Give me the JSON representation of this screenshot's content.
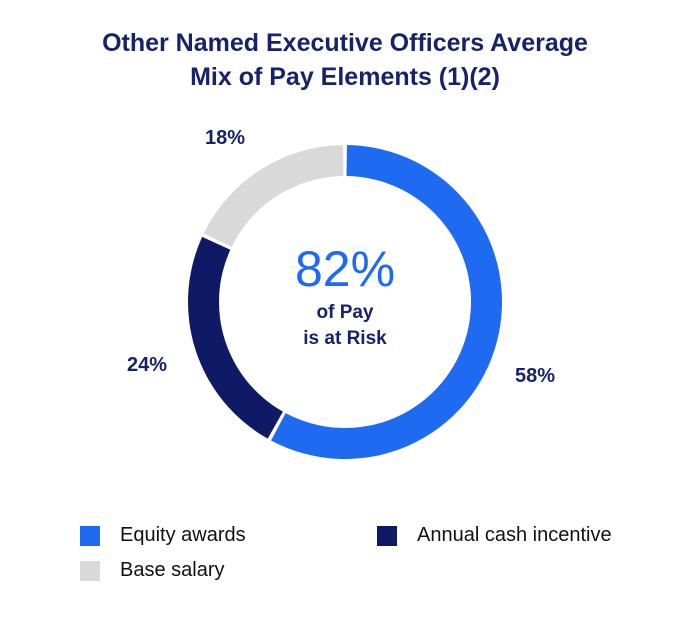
{
  "chart_data": {
    "type": "pie",
    "variant": "donut",
    "title_lines": [
      "Other Named Executive Officers Average",
      "Mix of Pay Elements (1)(2)"
    ],
    "slices": [
      {
        "name": "Equity awards",
        "value": 58,
        "label": "58%",
        "color": "#1e6bf1"
      },
      {
        "name": "Annual cash incentive",
        "value": 24,
        "label": "24%",
        "color": "#0f1a66"
      },
      {
        "name": "Base salary",
        "value": 18,
        "label": "18%",
        "color": "#d9d9d9"
      }
    ],
    "center": {
      "value": "82%",
      "line1": "of Pay",
      "line2": "is at Risk"
    },
    "legend": [
      {
        "name": "Equity awards",
        "color": "#1e6bf1"
      },
      {
        "name": "Annual cash incentive",
        "color": "#0f1a66"
      },
      {
        "name": "Base salary",
        "color": "#d9d9d9"
      }
    ]
  }
}
